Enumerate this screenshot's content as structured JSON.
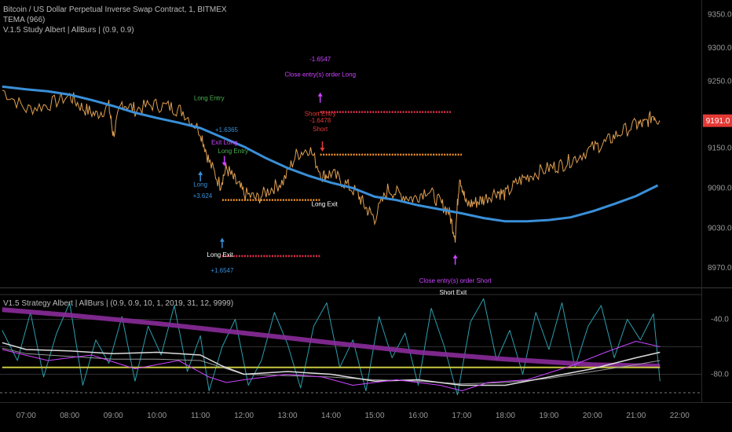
{
  "header": {
    "title": "Bitcoin / US Dollar Perpetual Inverse Swap Contract, 1, BITMEX",
    "line2": "TEMA (966)",
    "line3": "V.1.5 Study Albert | AllBurs | (0.9, 0.9)"
  },
  "subpane": {
    "title": "V1.5 Strategy Albert | AllBurs | (0.9, 0.9, 10, 1, 2019, 31, 12, 9999)"
  },
  "colors": {
    "background": "#000000",
    "price": "#e0a050",
    "tema": "#3a8fd8",
    "current_price_badge": "#e53935",
    "short_level": "#e0304a",
    "long_level": "#f0902a",
    "entry_long": "#4caf50",
    "entry_short": "#e53935",
    "marker_blue": "#3a8fd8",
    "marker_purple": "#cc44ff",
    "osc_cyan": "#2a9fb0",
    "osc_purple_thick": "#8a2b9a",
    "osc_yellow": "#c8c840",
    "osc_white": "#dddddd",
    "osc_grey": "#999999"
  },
  "chart_data": [
    {
      "type": "line",
      "pane": "price",
      "y_ticks": [
        8970.0,
        9030.0,
        9090.0,
        9150.0,
        9250.0,
        9300.0,
        9350.0
      ],
      "y_tick_labels": [
        "8970.0",
        "9030.0",
        "9090.0",
        "9150.0",
        "9250.0",
        "9300.0",
        "9350.0"
      ],
      "ylim": [
        8942,
        9372
      ],
      "x_tick_labels": [
        "07:00",
        "08:00",
        "09:00",
        "10:00",
        "11:00",
        "12:00",
        "13:00",
        "14:00",
        "15:00",
        "16:00",
        "17:00",
        "18:00",
        "19:00",
        "20:00",
        "21:00",
        "22:00"
      ],
      "xlim": [
        6.4,
        22.5
      ],
      "current_price": "9191.0",
      "series": [
        {
          "role": "price",
          "x": [
            6.45,
            7.0,
            7.5,
            8.0,
            8.3,
            8.6,
            8.9,
            9.0,
            9.2,
            9.5,
            9.9,
            10.3,
            10.6,
            11.0,
            11.2,
            11.45,
            11.6,
            11.8,
            12.0,
            12.3,
            12.6,
            12.9,
            13.2,
            13.5,
            13.8,
            14.0,
            14.3,
            14.6,
            14.8,
            15.0,
            15.3,
            15.6,
            15.9,
            16.2,
            16.5,
            16.7,
            16.85,
            16.95,
            17.1,
            17.3,
            17.5,
            17.8,
            18.0,
            18.3,
            18.6,
            19.0,
            19.3,
            19.6,
            20.0,
            20.3,
            20.6,
            21.0,
            21.2,
            21.4,
            21.55
          ],
          "values": [
            9237,
            9208,
            9215,
            9228,
            9210,
            9200,
            9212,
            9170,
            9218,
            9208,
            9215,
            9212,
            9205,
            9175,
            9130,
            9095,
            9120,
            9100,
            9082,
            9074,
            9088,
            9100,
            9140,
            9150,
            9108,
            9112,
            9098,
            9082,
            9060,
            9045,
            9088,
            9080,
            9074,
            9088,
            9068,
            9055,
            9018,
            9110,
            9065,
            9068,
            9073,
            9085,
            9080,
            9100,
            9110,
            9120,
            9125,
            9135,
            9150,
            9158,
            9172,
            9185,
            9186,
            9200,
            9190
          ]
        },
        {
          "role": "tema",
          "x": [
            6.45,
            7.0,
            7.5,
            8.0,
            8.5,
            9.0,
            9.5,
            10.0,
            10.5,
            11.0,
            11.5,
            12.0,
            12.5,
            13.0,
            13.5,
            14.0,
            14.5,
            15.0,
            15.5,
            16.0,
            16.5,
            17.0,
            17.5,
            18.0,
            18.5,
            19.0,
            19.5,
            20.0,
            20.5,
            21.0,
            21.5
          ],
          "values": [
            9242,
            9238,
            9235,
            9230,
            9222,
            9213,
            9203,
            9195,
            9188,
            9180,
            9166,
            9152,
            9135,
            9120,
            9108,
            9098,
            9090,
            9077,
            9072,
            9064,
            9058,
            9052,
            9045,
            9040,
            9040,
            9042,
            9046,
            9055,
            9066,
            9078,
            9094
          ]
        }
      ],
      "levels": [
        {
          "name": "short-level",
          "y": 9204,
          "x": [
            13.75,
            16.75
          ]
        },
        {
          "name": "long-level-upper",
          "y": 9140,
          "x": [
            13.75,
            17.0
          ]
        },
        {
          "name": "long-level-lower",
          "y": 9072,
          "x": [
            11.5,
            13.75
          ]
        },
        {
          "name": "long-exit-level",
          "y": 8988,
          "x": [
            11.5,
            13.75
          ]
        }
      ],
      "annotations": {
        "long_entry": "Long Entry",
        "long_entry_value": "+1.6365",
        "exit_long": "Exit Long",
        "long_entry2": "Long Entry",
        "long_label": "Long",
        "long_value": "+3.624",
        "long_exit_center": "Long Exit",
        "long_exit_bottom": "Long Exit",
        "long_exit_value": "+1.6547",
        "short_pnl": "-1.6547",
        "close_long": "Close entry(s) order Long",
        "short_entry": "Short Entry",
        "short_value": "-1.6478",
        "short_label": "Short",
        "close_short": "Close entry(s) order Short",
        "short_exit": "Short Exit"
      }
    },
    {
      "type": "line",
      "pane": "oscillator",
      "y_ticks": [
        -40.0,
        -80.0
      ],
      "y_tick_labels": [
        "-40.0",
        "-80.0"
      ],
      "ylim": [
        -98,
        -18
      ],
      "x_tick_labels": [],
      "series": [
        {
          "role": "purple-thick",
          "x": [
            6.45,
            8.0,
            10.0,
            12.0,
            14.0,
            16.0,
            18.0,
            20.0,
            21.55
          ],
          "values": [
            -33,
            -37,
            -43,
            -50,
            -57,
            -64,
            -69,
            -73,
            -74
          ]
        },
        {
          "role": "yellow-flat",
          "x": [
            6.45,
            21.55
          ],
          "values": [
            -75,
            -75
          ]
        },
        {
          "role": "white",
          "x": [
            6.45,
            7.0,
            8.0,
            9.0,
            10.0,
            11.0,
            11.5,
            12.0,
            13.0,
            14.0,
            15.0,
            16.0,
            17.0,
            18.0,
            19.0,
            20.0,
            21.0,
            21.55
          ],
          "values": [
            -57,
            -62,
            -63,
            -65,
            -64,
            -66,
            -74,
            -80,
            -78,
            -80,
            -85,
            -84,
            -88,
            -88,
            -82,
            -76,
            -68,
            -64
          ]
        },
        {
          "role": "grey",
          "x": [
            6.45,
            7.0,
            8.0,
            9.0,
            10.0,
            11.0,
            11.5,
            12.0,
            13.0,
            14.0,
            15.0,
            16.0,
            17.0,
            18.0,
            19.0,
            20.0,
            21.0,
            21.55
          ],
          "values": [
            -61,
            -65,
            -67,
            -69,
            -69,
            -70,
            -75,
            -80,
            -81,
            -82,
            -84,
            -85,
            -87,
            -86,
            -83,
            -78,
            -73,
            -70
          ]
        },
        {
          "role": "cyan",
          "x": [
            6.45,
            6.8,
            7.1,
            7.4,
            7.7,
            8.0,
            8.3,
            8.6,
            8.9,
            9.2,
            9.5,
            9.8,
            10.1,
            10.4,
            10.7,
            11.0,
            11.2,
            11.5,
            11.8,
            12.1,
            12.4,
            12.7,
            13.0,
            13.3,
            13.6,
            13.9,
            14.2,
            14.5,
            14.8,
            15.1,
            15.4,
            15.7,
            16.0,
            16.3,
            16.6,
            16.9,
            17.2,
            17.5,
            17.8,
            18.1,
            18.4,
            18.7,
            19.0,
            19.3,
            19.6,
            19.9,
            20.2,
            20.5,
            20.8,
            21.1,
            21.4,
            21.55
          ],
          "values": [
            -48,
            -70,
            -35,
            -82,
            -50,
            -28,
            -88,
            -55,
            -72,
            -38,
            -85,
            -45,
            -66,
            -30,
            -78,
            -52,
            -92,
            -60,
            -40,
            -88,
            -70,
            -35,
            -58,
            -90,
            -45,
            -28,
            -75,
            -55,
            -92,
            -38,
            -68,
            -50,
            -88,
            -32,
            -60,
            -95,
            -42,
            -25,
            -70,
            -48,
            -80,
            -35,
            -62,
            -28,
            -75,
            -45,
            -30,
            -68,
            -40,
            -55,
            -36,
            -85
          ]
        },
        {
          "role": "purple-thin",
          "x": [
            6.45,
            7.5,
            8.5,
            9.5,
            10.5,
            11.2,
            11.6,
            12.0,
            13.0,
            13.8,
            14.5,
            15.5,
            16.5,
            17.0,
            17.6,
            18.5,
            19.5,
            20.3,
            21.0,
            21.55
          ],
          "values": [
            -62,
            -70,
            -66,
            -76,
            -70,
            -82,
            -86,
            -84,
            -80,
            -82,
            -88,
            -84,
            -88,
            -92,
            -86,
            -84,
            -74,
            -64,
            -56,
            -60
          ]
        }
      ]
    }
  ]
}
